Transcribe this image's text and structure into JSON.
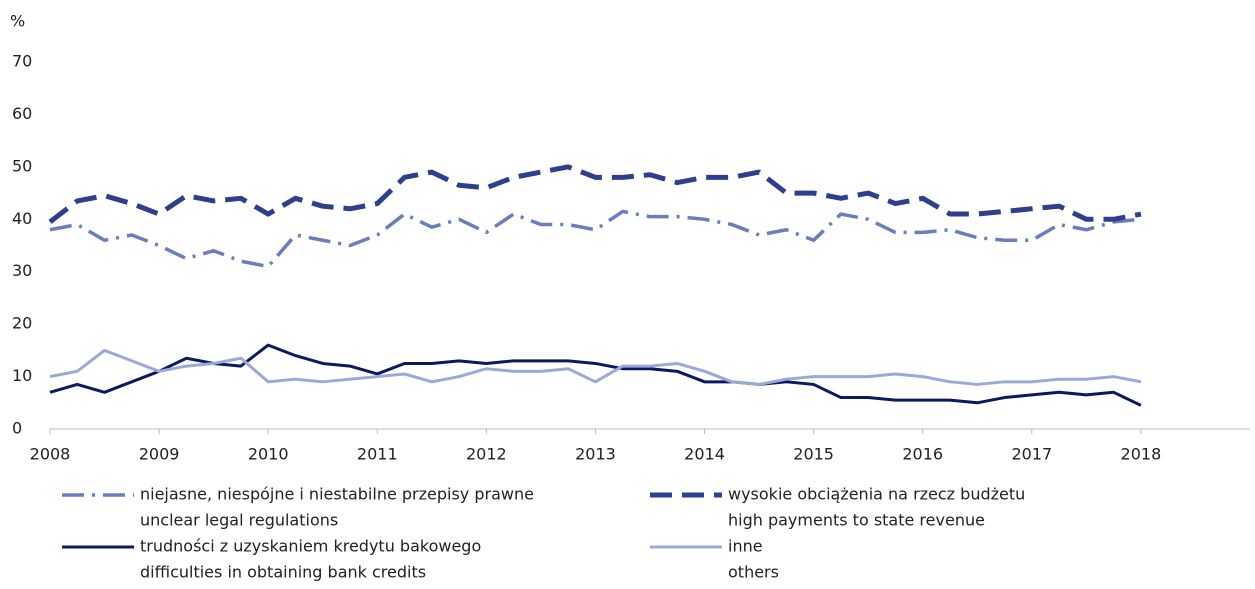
{
  "chart_data": {
    "type": "line",
    "y_unit": "%",
    "x": [
      2008,
      2008.25,
      2008.5,
      2008.75,
      2009,
      2009.25,
      2009.5,
      2009.75,
      2010,
      2010.25,
      2010.5,
      2010.75,
      2011,
      2011.25,
      2011.5,
      2011.75,
      2012,
      2012.25,
      2012.5,
      2012.75,
      2013,
      2013.25,
      2013.5,
      2013.75,
      2014,
      2014.25,
      2014.5,
      2014.75,
      2015,
      2015.25,
      2015.5,
      2015.75,
      2016,
      2016.25,
      2016.5,
      2016.75,
      2017,
      2017.25,
      2017.5,
      2017.75,
      2018
    ],
    "xlim": [
      2008,
      2019
    ],
    "xticks": [
      2008,
      2009,
      2010,
      2011,
      2012,
      2013,
      2014,
      2015,
      2016,
      2017,
      2018
    ],
    "ylim": [
      0,
      70
    ],
    "yticks": [
      0,
      10,
      20,
      30,
      40,
      50,
      60,
      70
    ],
    "grid": false,
    "series": [
      {
        "name": "niejasne, niespójne i niestabilne przepisy prawne",
        "name_en": "unclear legal regulations",
        "color": "#6a7dbd",
        "style": "dashdot",
        "values": [
          38,
          39,
          36,
          37,
          35,
          32.5,
          34,
          32,
          31,
          37,
          36,
          35,
          37,
          41,
          38.5,
          40,
          37.5,
          41,
          39,
          39,
          38,
          41.5,
          40.5,
          40.5,
          40,
          39,
          37,
          38,
          36,
          41,
          40,
          37.5,
          37.5,
          38,
          36.5,
          36,
          36,
          39,
          38,
          39.5,
          40
        ]
      },
      {
        "name": "wysokie obciążenia na rzecz budżetu",
        "name_en": "high payments to state revenue",
        "color": "#2e3f8e",
        "style": "dashed",
        "values": [
          39.5,
          43.5,
          44.5,
          43,
          41,
          44.5,
          43.5,
          44,
          41,
          44,
          42.5,
          42,
          43,
          48,
          49,
          46.5,
          46,
          48,
          49,
          50,
          48,
          48,
          48.5,
          47,
          48,
          48,
          49,
          45,
          45,
          44,
          45,
          43,
          44,
          41,
          41,
          41.5,
          42,
          42.5,
          40,
          40,
          41
        ]
      },
      {
        "name": "trudności z uzyskaniem kredytu bakowego",
        "name_en": "difficulties in obtaining bank credits",
        "color": "#0b1a5e",
        "style": "solid",
        "values": [
          7,
          8.5,
          7,
          9,
          11,
          13.5,
          12.5,
          12,
          16,
          14,
          12.5,
          12,
          10.5,
          12.5,
          12.5,
          13,
          12.5,
          13,
          13,
          13,
          12.5,
          11.5,
          11.5,
          11,
          9,
          9,
          8.5,
          9,
          8.5,
          6,
          6,
          5.5,
          5.5,
          5.5,
          5,
          6,
          6.5,
          7,
          6.5,
          7,
          4.5
        ]
      },
      {
        "name": "inne",
        "name_en": "others",
        "color": "#9ba9d8",
        "style": "solid",
        "values": [
          10,
          11,
          15,
          13,
          11,
          12,
          12.5,
          13.5,
          9,
          9.5,
          9,
          9.5,
          10,
          10.5,
          9,
          10,
          11.5,
          11,
          11,
          11.5,
          9,
          12,
          12,
          12.5,
          11,
          9,
          8.5,
          9.5,
          10,
          10,
          10,
          10.5,
          10,
          9,
          8.5,
          9,
          9,
          9.5,
          9.5,
          10,
          9
        ]
      }
    ]
  }
}
